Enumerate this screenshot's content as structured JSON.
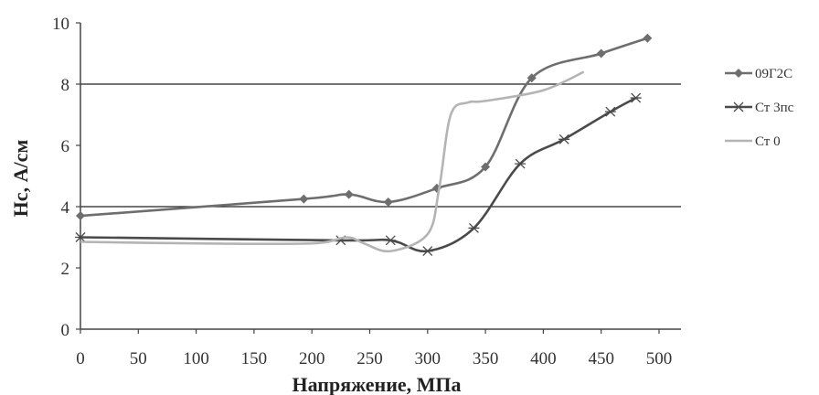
{
  "chart_data": {
    "type": "line",
    "xlabel": "Напряжение, МПа",
    "ylabel": "Hc, А/см",
    "xlim": [
      0,
      500
    ],
    "ylim": [
      0,
      10
    ],
    "x_ticks": [
      "0",
      "50",
      "100",
      "150",
      "200",
      "250",
      "300",
      "350",
      "400",
      "450",
      "500"
    ],
    "y_ticks": [
      "0",
      "2",
      "4",
      "6",
      "8",
      "10"
    ],
    "gridlines_y": [
      4,
      8
    ],
    "legend_position": "right",
    "series": [
      {
        "name": "09Г2С",
        "marker": "diamond",
        "color": "#6e6e6e",
        "x": [
          0,
          193,
          232,
          266,
          308,
          350,
          390,
          450,
          490
        ],
        "y": [
          3.7,
          4.25,
          4.4,
          4.15,
          4.6,
          5.3,
          8.2,
          9.0,
          9.5
        ]
      },
      {
        "name": "Ст 3пс",
        "marker": "star",
        "color": "#4a4a4a",
        "x": [
          0,
          225,
          268,
          300,
          340,
          380,
          418,
          458,
          480
        ],
        "y": [
          3.0,
          2.9,
          2.9,
          2.55,
          3.3,
          5.4,
          6.2,
          7.1,
          7.55
        ]
      },
      {
        "name": "Ст 0",
        "marker": "none",
        "color": "#b4b4b4",
        "x": [
          0,
          100,
          200,
          230,
          245,
          268,
          300,
          310,
          320,
          335,
          350,
          400,
          435
        ],
        "y": [
          2.85,
          2.8,
          2.8,
          3.0,
          2.8,
          2.55,
          3.1,
          4.6,
          7.0,
          7.4,
          7.45,
          7.8,
          8.4
        ]
      }
    ]
  }
}
